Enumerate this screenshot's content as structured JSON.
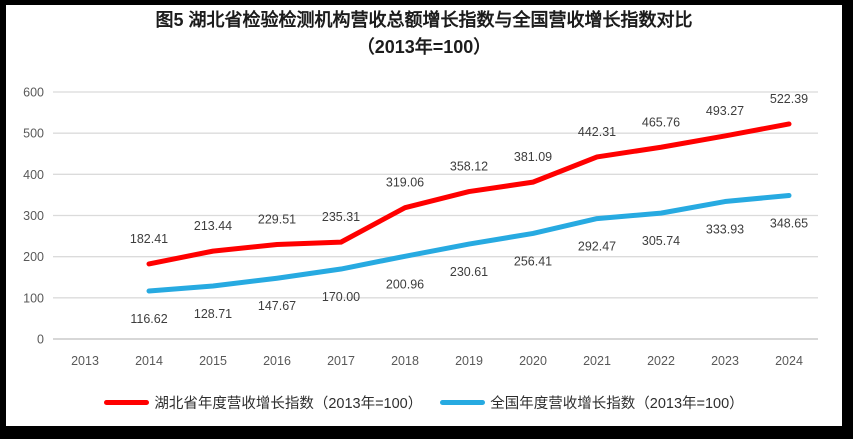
{
  "chart_data": {
    "type": "line",
    "title": "图5 湖北省检验检测机构营收总额增长指数与全国营收增长指数对比",
    "subtitle": "（2013年=100）",
    "categories": [
      "2013",
      "2014",
      "2015",
      "2016",
      "2017",
      "2018",
      "2019",
      "2020",
      "2021",
      "2022",
      "2023",
      "2024"
    ],
    "ylim": [
      0,
      600
    ],
    "yticks": [
      "0",
      "100",
      "200",
      "300",
      "400",
      "500",
      "600"
    ],
    "grid": "horizontal",
    "legend_position": "bottom-center",
    "series": [
      {
        "id": "hubei",
        "name": "湖北省年度营收增长指数（2013年=100）",
        "color": "#FF0000",
        "start_index": 1,
        "label_position": "above",
        "values": [
          182.41,
          213.44,
          229.51,
          235.31,
          319.06,
          358.12,
          381.09,
          442.31,
          465.76,
          493.27,
          522.39
        ],
        "labels": [
          "182.41",
          "213.44",
          "229.51",
          "235.31",
          "319.06",
          "358.12",
          "381.09",
          "442.31",
          "465.76",
          "493.27",
          "522.39"
        ]
      },
      {
        "id": "national",
        "name": "全国年度营收增长指数（2013年=100）",
        "color": "#27AAE1",
        "start_index": 1,
        "label_position": "below",
        "values": [
          116.62,
          128.71,
          147.67,
          170.0,
          200.96,
          230.61,
          256.41,
          292.47,
          305.74,
          333.93,
          348.65
        ],
        "labels": [
          "116.62",
          "128.71",
          "147.67",
          "170.00",
          "200.96",
          "230.61",
          "256.41",
          "292.47",
          "305.74",
          "333.93",
          "348.65"
        ]
      }
    ],
    "colors": {
      "gridline": "#DBDBDB",
      "axis_line": "#BFBFBF",
      "frame": "#000000"
    }
  }
}
